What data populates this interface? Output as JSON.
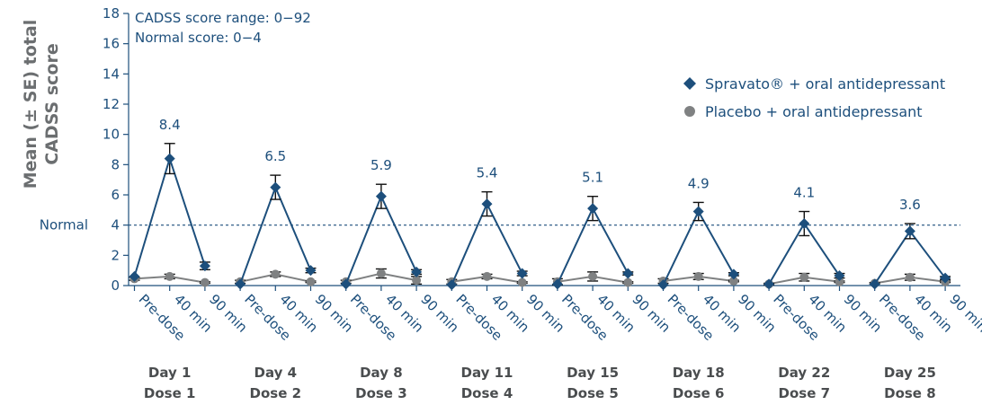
{
  "chart_data": {
    "type": "line",
    "ylabel": [
      "Mean (± SE) total",
      "CADSS score"
    ],
    "ylim": [
      0,
      18
    ],
    "yticks": [
      0,
      2,
      4,
      6,
      8,
      10,
      12,
      14,
      16,
      18
    ],
    "grid": false,
    "legend_position": "top-right",
    "annotations": [
      "CADSS score range: 0−92",
      "Normal score: 0−4"
    ],
    "reference_line": {
      "label": "Normal",
      "value": 4
    },
    "timepoints": [
      "Pre-dose",
      "40 min",
      "90 min"
    ],
    "groups": [
      {
        "day": "Day 1",
        "dose": "Dose 1"
      },
      {
        "day": "Day 4",
        "dose": "Dose 2"
      },
      {
        "day": "Day 8",
        "dose": "Dose 3"
      },
      {
        "day": "Day 11",
        "dose": "Dose 4"
      },
      {
        "day": "Day 15",
        "dose": "Dose 5"
      },
      {
        "day": "Day 18",
        "dose": "Dose 6"
      },
      {
        "day": "Day 22",
        "dose": "Dose 7"
      },
      {
        "day": "Day 25",
        "dose": "Dose 8"
      }
    ],
    "peak_labels": [
      "8.4",
      "6.5",
      "5.9",
      "5.4",
      "5.1",
      "4.9",
      "4.1",
      "3.6"
    ],
    "series": [
      {
        "name": "Spravato® + oral antidepressant",
        "color": "#1d4f7c",
        "marker": "diamond",
        "values": [
          [
            0.6,
            8.4,
            1.3
          ],
          [
            0.1,
            6.5,
            1.0
          ],
          [
            0.1,
            5.9,
            0.9
          ],
          [
            0.05,
            5.4,
            0.8
          ],
          [
            0.1,
            5.1,
            0.8
          ],
          [
            0.05,
            4.9,
            0.75
          ],
          [
            0.1,
            4.1,
            0.65
          ],
          [
            0.1,
            3.6,
            0.5
          ]
        ],
        "se": [
          [
            0,
            1.0,
            0.25
          ],
          [
            0,
            0.8,
            0.15
          ],
          [
            0,
            0.8,
            0.15
          ],
          [
            0,
            0.8,
            0.15
          ],
          [
            0,
            0.8,
            0.1
          ],
          [
            0,
            0.6,
            0.1
          ],
          [
            0,
            0.8,
            0.15
          ],
          [
            0,
            0.5,
            0.1
          ]
        ]
      },
      {
        "name": "Placebo + oral antidepressant",
        "color": "#7f8182",
        "marker": "circle",
        "values": [
          [
            0.45,
            0.6,
            0.2
          ],
          [
            0.25,
            0.75,
            0.25
          ],
          [
            0.25,
            0.8,
            0.35
          ],
          [
            0.25,
            0.6,
            0.2
          ],
          [
            0.25,
            0.6,
            0.2
          ],
          [
            0.3,
            0.6,
            0.3
          ],
          [
            0.1,
            0.55,
            0.25
          ],
          [
            0.15,
            0.55,
            0.25
          ]
        ],
        "se": [
          [
            0.1,
            0.15,
            0.05
          ],
          [
            0.1,
            0.15,
            0.05
          ],
          [
            0.1,
            0.3,
            0.25
          ],
          [
            0.15,
            0.15,
            0.05
          ],
          [
            0.2,
            0.3,
            0.05
          ],
          [
            0.15,
            0.2,
            0.05
          ],
          [
            0.05,
            0.25,
            0.05
          ],
          [
            0.05,
            0.2,
            0.05
          ]
        ]
      }
    ]
  }
}
